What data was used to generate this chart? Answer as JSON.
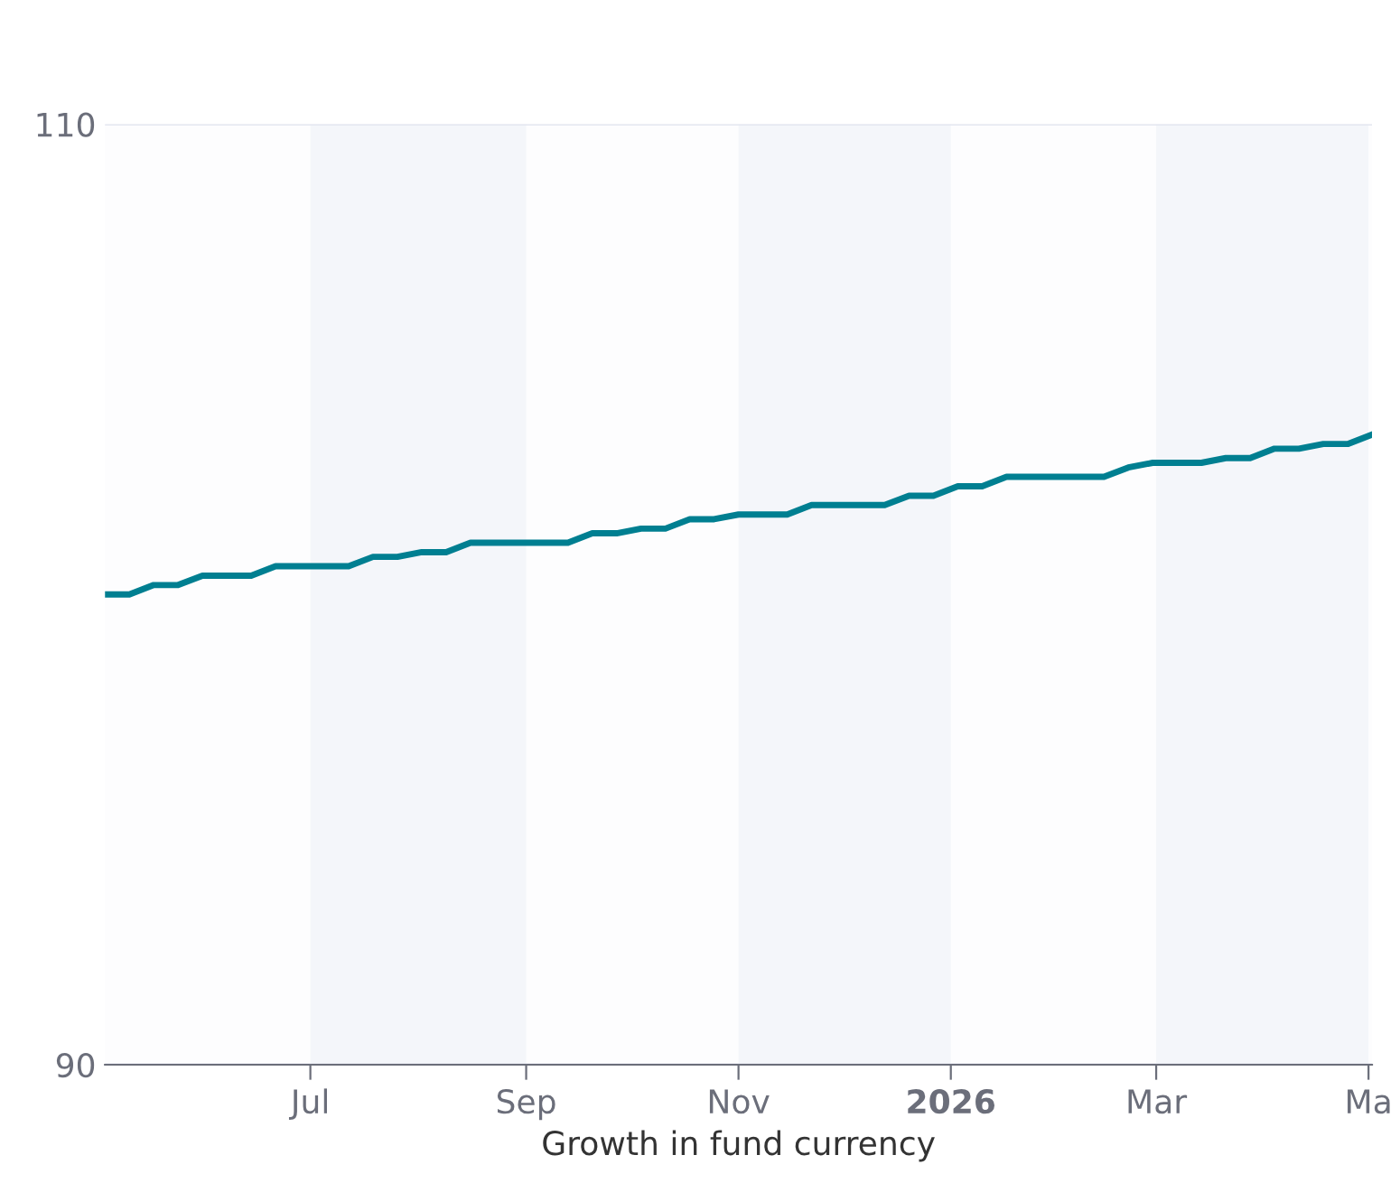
{
  "chart_data": {
    "type": "line",
    "xlabel": "Growth in fund currency",
    "x": [
      "2025-05-03",
      "2025-05-10",
      "2025-05-17",
      "2025-05-24",
      "2025-05-31",
      "2025-06-14",
      "2025-06-21",
      "2025-07-12",
      "2025-07-19",
      "2025-07-26",
      "2025-08-02",
      "2025-08-09",
      "2025-08-16",
      "2025-09-13",
      "2025-09-20",
      "2025-09-27",
      "2025-10-04",
      "2025-10-11",
      "2025-10-18",
      "2025-10-25",
      "2025-11-01",
      "2025-11-15",
      "2025-11-22",
      "2025-12-13",
      "2025-12-20",
      "2025-12-27",
      "2026-01-03",
      "2026-01-10",
      "2026-01-17",
      "2026-02-14",
      "2026-02-21",
      "2026-02-28",
      "2026-03-14",
      "2026-03-21",
      "2026-03-28",
      "2026-04-04",
      "2026-04-11",
      "2026-04-18",
      "2026-04-25",
      "2026-05-02"
    ],
    "series": [
      {
        "color": "#007f91",
        "values": [
          100.0,
          100.0,
          100.2,
          100.2,
          100.4,
          100.4,
          100.6,
          100.6,
          100.8,
          100.8,
          100.9,
          100.9,
          101.1,
          101.1,
          101.3,
          101.3,
          101.4,
          101.4,
          101.6,
          101.6,
          101.7,
          101.7,
          101.9,
          101.9,
          102.1,
          102.1,
          102.3,
          102.3,
          102.5,
          102.5,
          102.7,
          102.8,
          102.8,
          102.9,
          102.9,
          103.1,
          103.1,
          103.2,
          103.2,
          103.4
        ]
      }
    ],
    "xlim": [
      "2025-05-03",
      "2026-05-02"
    ],
    "ylim": [
      90,
      110
    ],
    "yticks": [
      90,
      110
    ],
    "xticks": [
      {
        "value": "2025-07-01",
        "label": "Jul"
      },
      {
        "value": "2025-09-01",
        "label": "Sep"
      },
      {
        "value": "2025-11-01",
        "label": "Nov"
      },
      {
        "value": "2026-01-01",
        "label": "2026"
      },
      {
        "value": "2026-03-01",
        "label": "Mar"
      },
      {
        "value": "2026-05-01",
        "label": "Ma"
      }
    ],
    "bands": [
      {
        "axis": "x",
        "from": "2025-07-01",
        "to": "2025-09-01",
        "color": "#f4f6fa"
      },
      {
        "axis": "x",
        "from": "2025-11-01",
        "to": "2026-01-01",
        "color": "#f4f6fa"
      },
      {
        "axis": "x",
        "from": "2026-03-01",
        "to": "2026-05-01",
        "color": "#f4f6fa"
      }
    ],
    "grid": "y",
    "line_style": "solid",
    "marker": "none"
  }
}
